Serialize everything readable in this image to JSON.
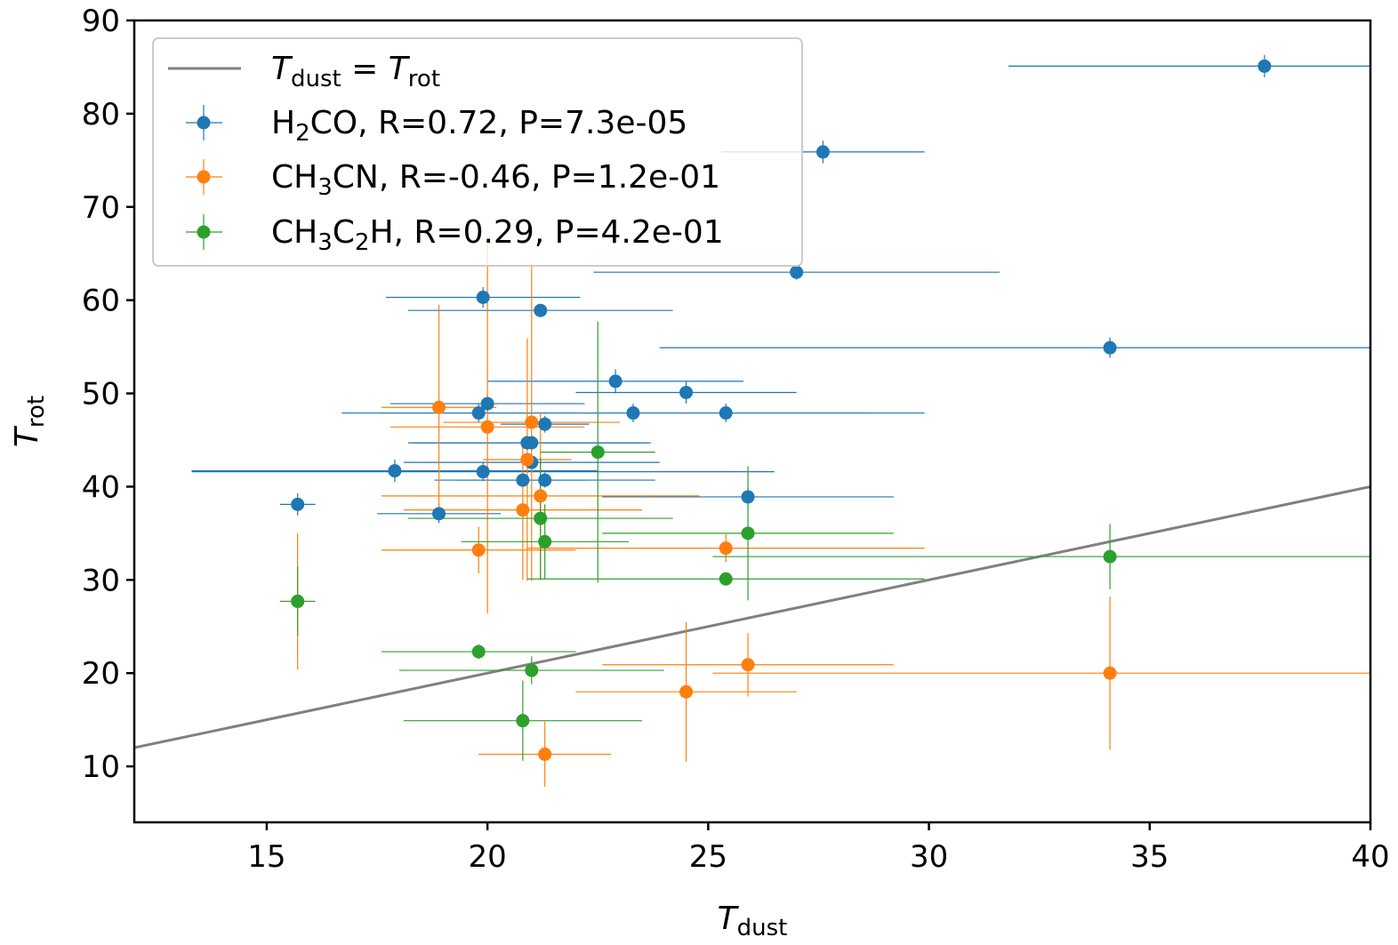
{
  "chart_data": {
    "type": "scatter",
    "xlabel": "T_dust",
    "ylabel": "T_rot",
    "xlim": [
      12,
      40
    ],
    "ylim": [
      4,
      90
    ],
    "xticks": [
      15,
      20,
      25,
      30,
      35,
      40
    ],
    "yticks": [
      10,
      20,
      30,
      40,
      50,
      60,
      70,
      80,
      90
    ],
    "grid": false,
    "legend_position": "top-left",
    "reference_line": {
      "label": "T_dust = T_rot",
      "x": [
        12,
        40
      ],
      "y": [
        12,
        40
      ],
      "color": "#808080"
    },
    "series": [
      {
        "name": "H2CO, R=0.72, P=7.3e-05",
        "color": "#1f77b4",
        "points": [
          {
            "x": 37.6,
            "y": 85.1,
            "xerr": [
              5.8,
              2.4
            ],
            "yerr": 1.2
          },
          {
            "x": 27.6,
            "y": 75.9,
            "xerr": [
              2.3,
              2.3
            ],
            "yerr": 1.2
          },
          {
            "x": 27.0,
            "y": 63.0,
            "xerr": [
              4.6,
              4.6
            ],
            "yerr": 0.8
          },
          {
            "x": 34.1,
            "y": 54.9,
            "xerr": [
              10.2,
              5.9
            ],
            "yerr": 1.1
          },
          {
            "x": 19.9,
            "y": 60.3,
            "xerr": [
              2.2,
              2.2
            ],
            "yerr": 1.1
          },
          {
            "x": 21.2,
            "y": 58.9,
            "xerr": [
              3.0,
              3.0
            ],
            "yerr": 0.7
          },
          {
            "x": 22.9,
            "y": 51.3,
            "xerr": [
              2.9,
              2.9
            ],
            "yerr": 1.3
          },
          {
            "x": 24.5,
            "y": 50.1,
            "xerr": [
              2.5,
              2.5
            ],
            "yerr": 1.2
          },
          {
            "x": 20.0,
            "y": 48.9,
            "xerr": [
              2.2,
              2.2
            ],
            "yerr": 1.0
          },
          {
            "x": 19.8,
            "y": 47.9,
            "xerr": [
              2.2,
              2.2
            ],
            "yerr": 1.0
          },
          {
            "x": 23.3,
            "y": 47.9,
            "xerr": [
              6.6,
              6.6
            ],
            "yerr": 1.0
          },
          {
            "x": 25.4,
            "y": 47.9,
            "xerr": [
              3.2,
              3.2
            ],
            "yerr": 1.0
          },
          {
            "x": 21.3,
            "y": 46.7,
            "xerr": [
              1.0,
              1.0
            ],
            "yerr": 0.9
          },
          {
            "x": 20.9,
            "y": 44.7,
            "xerr": [
              2.7,
              2.7
            ],
            "yerr": 0.8
          },
          {
            "x": 21.0,
            "y": 44.7,
            "xerr": [
              2.7,
              2.7
            ],
            "yerr": 0.8
          },
          {
            "x": 21.0,
            "y": 42.6,
            "xerr": [
              2.9,
              2.9
            ],
            "yerr": 0.8
          },
          {
            "x": 17.9,
            "y": 41.7,
            "xerr": [
              4.6,
              4.6
            ],
            "yerr": 1.2
          },
          {
            "x": 19.9,
            "y": 41.6,
            "xerr": [
              6.6,
              6.6
            ],
            "yerr": 1.0
          },
          {
            "x": 20.8,
            "y": 40.7,
            "xerr": [
              1.5,
              1.5
            ],
            "yerr": 0.8
          },
          {
            "x": 21.3,
            "y": 40.7,
            "xerr": [
              2.5,
              2.5
            ],
            "yerr": 0.8
          },
          {
            "x": 25.9,
            "y": 38.9,
            "xerr": [
              3.3,
              3.3
            ],
            "yerr": 1.0
          },
          {
            "x": 15.7,
            "y": 38.1,
            "xerr": [
              0.4,
              0.4
            ],
            "yerr": 1.2
          },
          {
            "x": 18.9,
            "y": 37.1,
            "xerr": [
              1.4,
              1.4
            ],
            "yerr": 1.0
          }
        ]
      },
      {
        "name": "CH3CN, R=-0.46, P=1.2e-01",
        "color": "#ff7f0e",
        "points": [
          {
            "x": 18.9,
            "y": 48.5,
            "xerr": [
              1.3,
              1.3
            ],
            "yerr": 11.0
          },
          {
            "x": 20.0,
            "y": 46.4,
            "xerr": [
              2.2,
              2.2
            ],
            "yerr": 20.0
          },
          {
            "x": 21.0,
            "y": 46.9,
            "xerr": [
              2.0,
              2.0
            ],
            "yerr": 17.0
          },
          {
            "x": 20.9,
            "y": 42.9,
            "xerr": [
              1.0,
              1.0
            ],
            "yerr": 13.0
          },
          {
            "x": 20.8,
            "y": 37.5,
            "xerr": [
              2.7,
              2.7
            ],
            "yerr": 7.5
          },
          {
            "x": 21.2,
            "y": 39.0,
            "xerr": [
              3.6,
              3.6
            ],
            "yerr": 9.0
          },
          {
            "x": 19.8,
            "y": 33.2,
            "xerr": [
              2.2,
              2.2
            ],
            "yerr": 2.5
          },
          {
            "x": 25.4,
            "y": 33.4,
            "xerr": [
              4.5,
              4.5
            ],
            "yerr": 1.5
          },
          {
            "x": 25.9,
            "y": 20.9,
            "xerr": [
              3.3,
              3.3
            ],
            "yerr": 3.4
          },
          {
            "x": 24.5,
            "y": 18.0,
            "xerr": [
              2.5,
              2.5
            ],
            "yerr": 7.5
          },
          {
            "x": 34.1,
            "y": 20.0,
            "xerr": [
              9.0,
              5.9
            ],
            "yerr": 8.2
          },
          {
            "x": 15.7,
            "y": 27.7,
            "xerr": [
              0.4,
              0.4
            ],
            "yerr": 7.3
          },
          {
            "x": 21.3,
            "y": 11.3,
            "xerr": [
              1.5,
              1.5
            ],
            "yerr": 3.5
          }
        ]
      },
      {
        "name": "CH3C2H, R=0.29, P=4.2e-01",
        "color": "#2ca02c",
        "points": [
          {
            "x": 22.5,
            "y": 43.7,
            "xerr": [
              1.3,
              1.3
            ],
            "yerr": 14.0
          },
          {
            "x": 21.2,
            "y": 36.6,
            "xerr": [
              3.0,
              3.0
            ],
            "yerr": 6.5
          },
          {
            "x": 21.3,
            "y": 34.1,
            "xerr": [
              1.9,
              1.9
            ],
            "yerr": 4.0
          },
          {
            "x": 25.9,
            "y": 35.0,
            "xerr": [
              3.3,
              3.3
            ],
            "yerr": 7.2
          },
          {
            "x": 25.4,
            "y": 30.1,
            "xerr": [
              4.5,
              4.5
            ],
            "yerr": 0.5
          },
          {
            "x": 34.1,
            "y": 32.5,
            "xerr": [
              9.0,
              5.9
            ],
            "yerr": 3.5
          },
          {
            "x": 15.7,
            "y": 27.7,
            "xerr": [
              0.4,
              0.4
            ],
            "yerr": 3.7
          },
          {
            "x": 19.8,
            "y": 22.3,
            "xerr": [
              2.2,
              2.2
            ],
            "yerr": 0.8
          },
          {
            "x": 21.0,
            "y": 20.3,
            "xerr": [
              3.0,
              3.0
            ],
            "yerr": 1.5
          },
          {
            "x": 20.8,
            "y": 14.9,
            "xerr": [
              2.7,
              2.7
            ],
            "yerr": 4.3
          }
        ]
      }
    ]
  },
  "legend": {
    "entries": [
      {
        "kind": "line",
        "color": "#808080",
        "parts": [
          [
            "T",
            "i"
          ],
          [
            "dust",
            "sub"
          ],
          [
            " = ",
            "n"
          ],
          [
            "T",
            "i"
          ],
          [
            "rot",
            "sub"
          ]
        ]
      },
      {
        "kind": "marker",
        "color": "#1f77b4",
        "parts": [
          [
            "H",
            "n"
          ],
          [
            "2",
            "sub"
          ],
          [
            "CO, R=0.72, P=7.3e-05",
            "n"
          ]
        ]
      },
      {
        "kind": "marker",
        "color": "#ff7f0e",
        "parts": [
          [
            "CH",
            "n"
          ],
          [
            "3",
            "sub"
          ],
          [
            "CN, R=-0.46, P=1.2e-01",
            "n"
          ]
        ]
      },
      {
        "kind": "marker",
        "color": "#2ca02c",
        "parts": [
          [
            "CH",
            "n"
          ],
          [
            "3",
            "sub"
          ],
          [
            "C",
            "n"
          ],
          [
            "2",
            "sub"
          ],
          [
            "H, R=0.29, P=4.2e-01",
            "n"
          ]
        ]
      }
    ]
  },
  "axes_text": {
    "xlabel_main": "T",
    "xlabel_sub": "dust",
    "ylabel_main": "T",
    "ylabel_sub": "rot"
  }
}
